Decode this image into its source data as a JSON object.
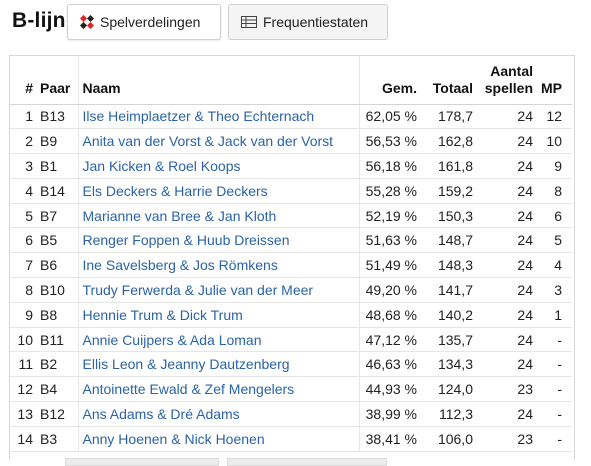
{
  "header": {
    "title": "B-lijn",
    "buttons": [
      {
        "label": "Spelverdelingen",
        "icon": "cards-icon"
      },
      {
        "label": "Frequentiestaten",
        "icon": "table-icon"
      }
    ]
  },
  "table": {
    "columns": {
      "num": "#",
      "pair": "Paar",
      "name": "Naam",
      "pct": "Gem.",
      "total": "Totaal",
      "games_line1": "Aantal",
      "games_line2": "spellen",
      "mp": "MP"
    },
    "rows": [
      {
        "num": "1",
        "pair": "B13",
        "name": "Ilse Heimplaetzer & Theo Echternach",
        "pct": "62,05 %",
        "total": "178,7",
        "games": "24",
        "mp": "12"
      },
      {
        "num": "2",
        "pair": "B9",
        "name": "Anita van der Vorst & Jack van der Vorst",
        "pct": "56,53 %",
        "total": "162,8",
        "games": "24",
        "mp": "10"
      },
      {
        "num": "3",
        "pair": "B1",
        "name": "Jan Kicken & Roel Koops",
        "pct": "56,18 %",
        "total": "161,8",
        "games": "24",
        "mp": "9"
      },
      {
        "num": "4",
        "pair": "B14",
        "name": "Els Deckers & Harrie Deckers",
        "pct": "55,28 %",
        "total": "159,2",
        "games": "24",
        "mp": "8"
      },
      {
        "num": "5",
        "pair": "B7",
        "name": "Marianne van Bree & Jan Kloth",
        "pct": "52,19 %",
        "total": "150,3",
        "games": "24",
        "mp": "6"
      },
      {
        "num": "6",
        "pair": "B5",
        "name": "Renger Foppen & Huub Dreissen",
        "pct": "51,63 %",
        "total": "148,7",
        "games": "24",
        "mp": "5"
      },
      {
        "num": "7",
        "pair": "B6",
        "name": "Ine Savelsberg & Jos Römkens",
        "pct": "51,49 %",
        "total": "148,3",
        "games": "24",
        "mp": "4"
      },
      {
        "num": "8",
        "pair": "B10",
        "name": "Trudy Ferwerda & Julie van der Meer",
        "pct": "49,20 %",
        "total": "141,7",
        "games": "24",
        "mp": "3"
      },
      {
        "num": "9",
        "pair": "B8",
        "name": "Hennie Trum & Dick Trum",
        "pct": "48,68 %",
        "total": "140,2",
        "games": "24",
        "mp": "1"
      },
      {
        "num": "10",
        "pair": "B11",
        "name": "Annie Cuijpers & Ada Loman",
        "pct": "47,12 %",
        "total": "135,7",
        "games": "24",
        "mp": "-"
      },
      {
        "num": "11",
        "pair": "B2",
        "name": "Ellis Leon & Jeanny Dautzenberg",
        "pct": "46,63 %",
        "total": "134,3",
        "games": "24",
        "mp": "-"
      },
      {
        "num": "12",
        "pair": "B4",
        "name": "Antoinette Ewald & Zef Mengelers",
        "pct": "44,93 %",
        "total": "124,0",
        "games": "23",
        "mp": "-"
      },
      {
        "num": "13",
        "pair": "B12",
        "name": "Ans Adams & Dré Adams",
        "pct": "38,99 %",
        "total": "112,3",
        "games": "24",
        "mp": "-"
      },
      {
        "num": "14",
        "pair": "B3",
        "name": "Anny Hoenen & Nick Hoenen",
        "pct": "38,41 %",
        "total": "106,0",
        "games": "23",
        "mp": "-"
      }
    ]
  },
  "colors": {
    "link": "#2a63a8",
    "cards_icon": "#d42a2a"
  }
}
